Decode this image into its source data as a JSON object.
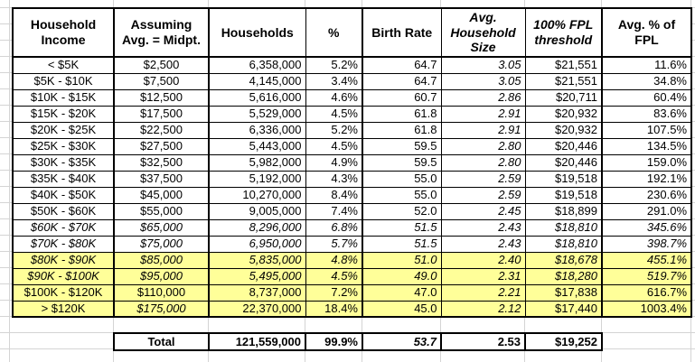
{
  "colors": {
    "highlight": "#ffff99",
    "gridline": "#d4d4d4",
    "border": "#000000"
  },
  "table": {
    "columns": [
      {
        "label": "Household Income",
        "header_italic": false,
        "values_italic": false
      },
      {
        "label": "Assuming Avg. = Midpt.",
        "header_italic": false,
        "values_italic": false
      },
      {
        "label": "Households",
        "header_italic": false,
        "values_italic": false
      },
      {
        "label": "%",
        "header_italic": false,
        "values_italic": false
      },
      {
        "label": "Birth Rate",
        "header_italic": false,
        "values_italic": false
      },
      {
        "label": "Avg. Household Size",
        "header_italic": true,
        "values_italic": true
      },
      {
        "label": "100% FPL threshold",
        "header_italic": true,
        "values_italic": false
      },
      {
        "label": "Avg. % of FPL",
        "header_italic": false,
        "values_italic": false
      }
    ],
    "rows": [
      {
        "cells": [
          "< $5K",
          "$2,500",
          "6,358,000",
          "5.2%",
          "64.7",
          "3.05",
          "$21,551",
          "11.6%"
        ],
        "highlight": false,
        "italic": false,
        "italic_cells": []
      },
      {
        "cells": [
          "$5K - $10K",
          "$7,500",
          "4,145,000",
          "3.4%",
          "64.7",
          "3.05",
          "$21,551",
          "34.8%"
        ],
        "highlight": false,
        "italic": false,
        "italic_cells": []
      },
      {
        "cells": [
          "$10K - $15K",
          "$12,500",
          "5,616,000",
          "4.6%",
          "60.7",
          "2.86",
          "$20,711",
          "60.4%"
        ],
        "highlight": false,
        "italic": false,
        "italic_cells": []
      },
      {
        "cells": [
          "$15K - $20K",
          "$17,500",
          "5,529,000",
          "4.5%",
          "61.8",
          "2.91",
          "$20,932",
          "83.6%"
        ],
        "highlight": false,
        "italic": false,
        "italic_cells": []
      },
      {
        "cells": [
          "$20K - $25K",
          "$22,500",
          "6,336,000",
          "5.2%",
          "61.8",
          "2.91",
          "$20,932",
          "107.5%"
        ],
        "highlight": false,
        "italic": false,
        "italic_cells": []
      },
      {
        "cells": [
          "$25K - $30K",
          "$27,500",
          "5,443,000",
          "4.5%",
          "59.5",
          "2.80",
          "$20,446",
          "134.5%"
        ],
        "highlight": false,
        "italic": false,
        "italic_cells": []
      },
      {
        "cells": [
          "$30K - $35K",
          "$32,500",
          "5,982,000",
          "4.9%",
          "59.5",
          "2.80",
          "$20,446",
          "159.0%"
        ],
        "highlight": false,
        "italic": false,
        "italic_cells": []
      },
      {
        "cells": [
          "$35K - $40K",
          "$37,500",
          "5,192,000",
          "4.3%",
          "55.0",
          "2.59",
          "$19,518",
          "192.1%"
        ],
        "highlight": false,
        "italic": false,
        "italic_cells": []
      },
      {
        "cells": [
          "$40K - $50K",
          "$45,000",
          "10,270,000",
          "8.4%",
          "55.0",
          "2.59",
          "$19,518",
          "230.6%"
        ],
        "highlight": false,
        "italic": false,
        "italic_cells": []
      },
      {
        "cells": [
          "$50K - $60K",
          "$55,000",
          "9,005,000",
          "7.4%",
          "52.0",
          "2.45",
          "$18,899",
          "291.0%"
        ],
        "highlight": false,
        "italic": false,
        "italic_cells": []
      },
      {
        "cells": [
          "$60K - $70K",
          "$65,000",
          "8,296,000",
          "6.8%",
          "51.5",
          "2.43",
          "$18,810",
          "345.6%"
        ],
        "highlight": false,
        "italic": true,
        "italic_cells": []
      },
      {
        "cells": [
          "$70K - $80K",
          "$75,000",
          "6,950,000",
          "5.7%",
          "51.5",
          "2.43",
          "$18,810",
          "398.7%"
        ],
        "highlight": false,
        "italic": true,
        "italic_cells": []
      },
      {
        "cells": [
          "$80K - $90K",
          "$85,000",
          "5,835,000",
          "4.8%",
          "51.0",
          "2.40",
          "$18,678",
          "455.1%"
        ],
        "highlight": true,
        "italic": true,
        "italic_cells": []
      },
      {
        "cells": [
          "$90K - $100K",
          "$95,000",
          "5,495,000",
          "4.5%",
          "49.0",
          "2.31",
          "$18,280",
          "519.7%"
        ],
        "highlight": true,
        "italic": true,
        "italic_cells": []
      },
      {
        "cells": [
          "$100K - $120K",
          "$110,000",
          "8,737,000",
          "7.2%",
          "47.0",
          "2.21",
          "$17,838",
          "616.7%"
        ],
        "highlight": true,
        "italic": false,
        "italic_cells": []
      },
      {
        "cells": [
          "> $120K",
          "$175,000",
          "22,370,000",
          "18.4%",
          "45.0",
          "2.12",
          "$17,440",
          "1003.4%"
        ],
        "highlight": true,
        "italic": false,
        "italic_cells": [
          1
        ]
      }
    ],
    "total": {
      "label": "Total",
      "cells": [
        "121,559,000",
        "99.9%",
        "53.7",
        "2.53",
        "$19,252"
      ],
      "italic_cells": [
        2
      ]
    }
  }
}
